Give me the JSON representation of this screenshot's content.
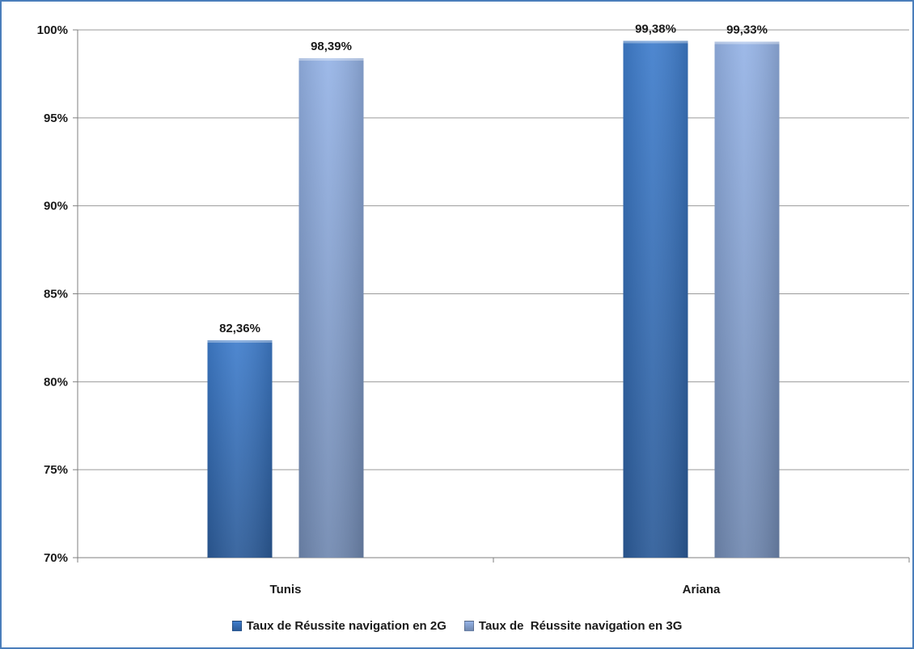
{
  "chart_data": {
    "type": "bar",
    "categories": [
      "Tunis",
      "Ariana"
    ],
    "series": [
      {
        "name": "Taux de Réussite navigation en 2G",
        "values": [
          82.36,
          99.38
        ],
        "labels": [
          "82,36%",
          "99,38%"
        ],
        "color": "#3a6fb8"
      },
      {
        "name": "Taux de  Réussite navigation en 3G",
        "values": [
          98.39,
          99.33
        ],
        "labels": [
          "98,39%",
          "99,33%"
        ],
        "color": "#8aa6d6"
      }
    ],
    "ylim": [
      70,
      100
    ],
    "yticks": [
      70,
      75,
      80,
      85,
      90,
      95,
      100
    ],
    "ytick_labels": [
      "70%",
      "75%",
      "80%",
      "85%",
      "90%",
      "95%",
      "100%"
    ],
    "grid": true,
    "legend_position": "bottom"
  }
}
